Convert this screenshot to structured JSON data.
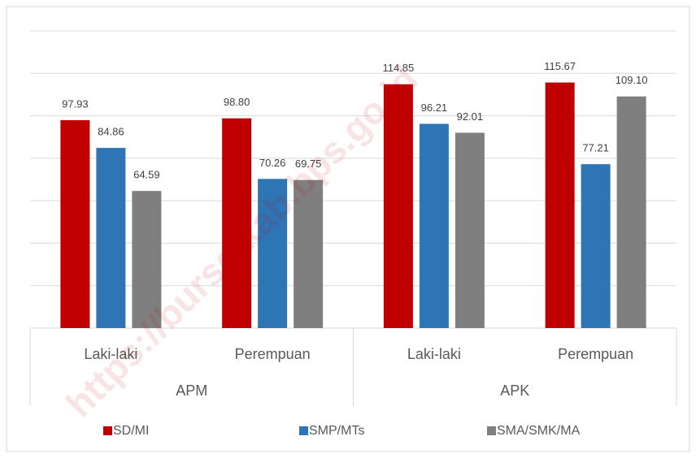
{
  "chart_data": {
    "type": "bar",
    "categories": [
      "Laki-laki",
      "Perempuan",
      "Laki-laki",
      "Perempuan"
    ],
    "groups": [
      "APM",
      "APK"
    ],
    "series": [
      {
        "name": "SD/MI",
        "color": "#c00000",
        "values": [
          97.93,
          98.8,
          114.85,
          115.67
        ]
      },
      {
        "name": "SMP/MTs",
        "color": "#2e75b6",
        "values": [
          84.86,
          70.26,
          96.21,
          77.21
        ]
      },
      {
        "name": "SMA/SMK/MA",
        "color": "#7f7f7f",
        "values": [
          64.59,
          69.75,
          92.01,
          109.1
        ],
        "value_labels": [
          "64.59",
          "69.75",
          "92.01",
          "109.10"
        ]
      }
    ],
    "value_labels_0": [
      "97.93",
      "98.80",
      "114.85",
      "115.67"
    ],
    "value_labels_1": [
      "84.86",
      "70.26",
      "96.21",
      "77.21"
    ],
    "ylim": [
      0,
      140
    ],
    "yticks": [
      0,
      20,
      40,
      60,
      80,
      100,
      120,
      140
    ],
    "grid": true,
    "legend": "bottom",
    "watermark": "https://burselkab.bps.go.id"
  }
}
